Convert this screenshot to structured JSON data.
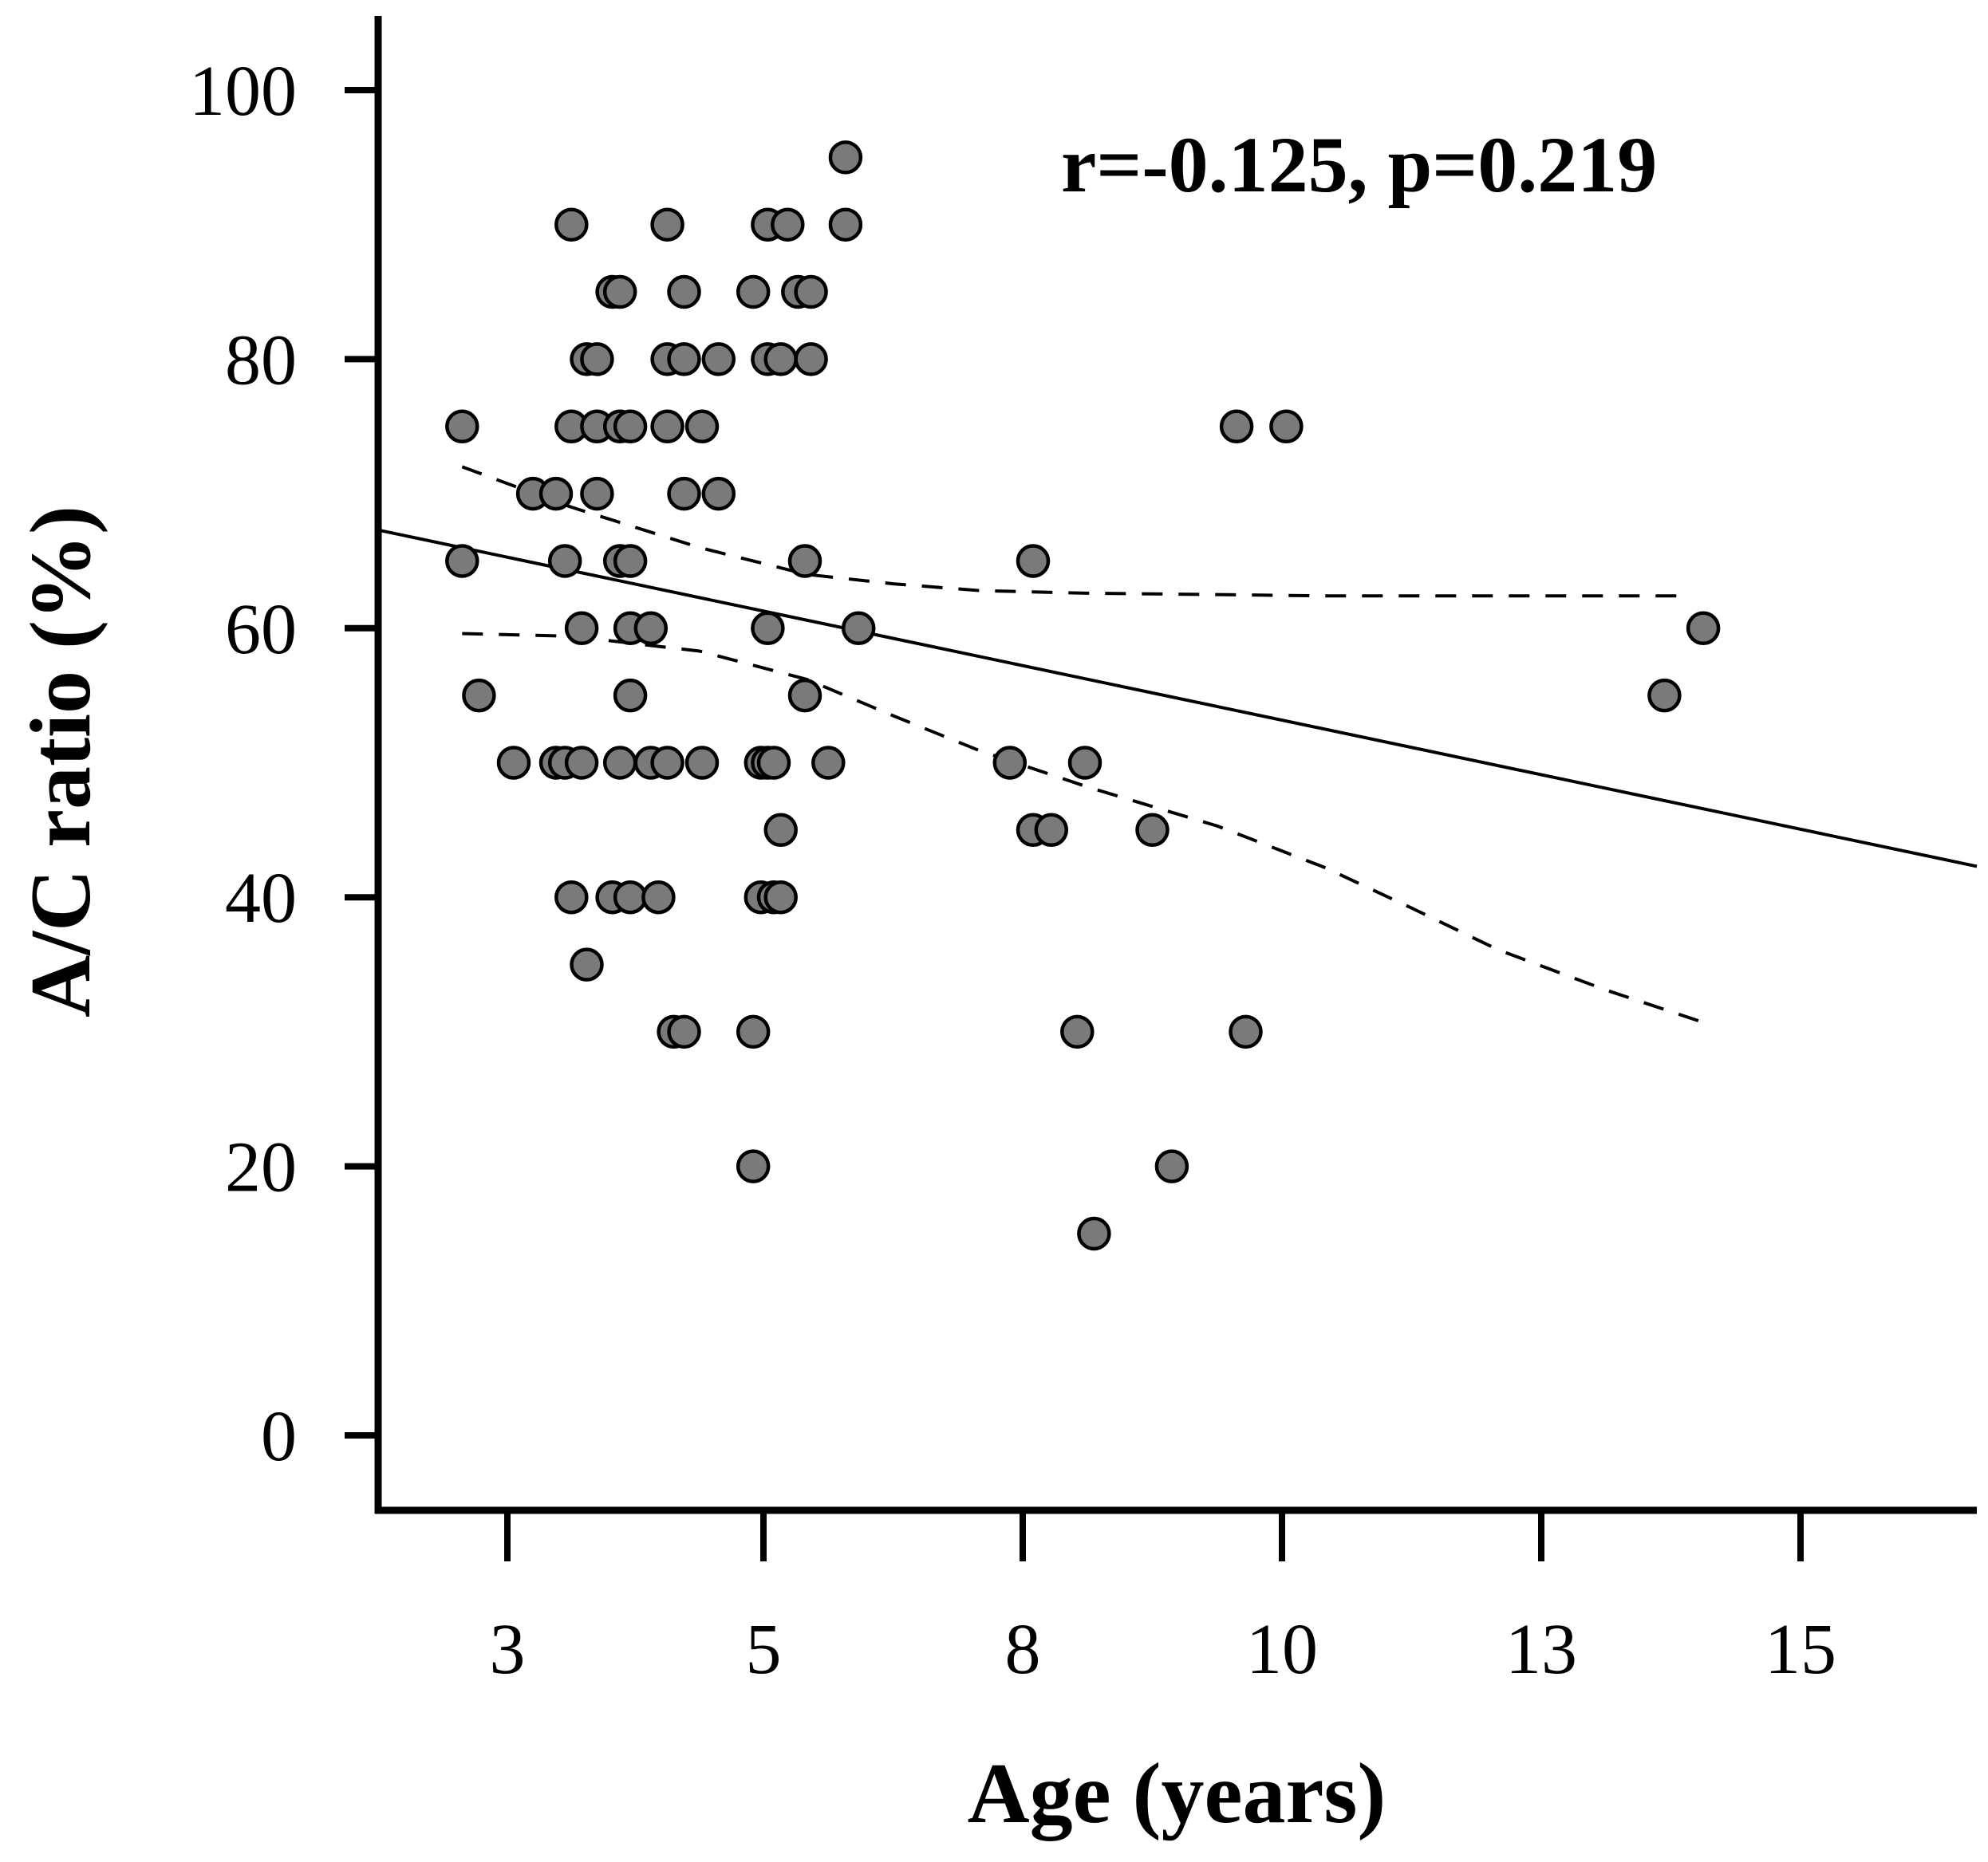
{
  "chart_data": {
    "type": "scatter",
    "title": "",
    "xlabel": "Age (years)",
    "ylabel": "A/C ratio (%)",
    "annotation": "r=-0.125, p=0.219",
    "x_tick_values": [
      3,
      5,
      8,
      10,
      13,
      15
    ],
    "x_tick_labels": [
      "3",
      "5",
      "8",
      "10",
      "13",
      "15"
    ],
    "y_tick_values": [
      0,
      20,
      40,
      60,
      80,
      100
    ],
    "y_tick_labels": [
      "0",
      "20",
      "40",
      "60",
      "80",
      "100"
    ],
    "xlim": [
      2,
      16.5
    ],
    "ylim": [
      -2,
      102
    ],
    "grid": false,
    "colors": {
      "point_fill": "#7a7a7a",
      "point_stroke": "#000000",
      "line": "#000000"
    },
    "points": [
      {
        "x": 2.65,
        "y": 75
      },
      {
        "x": 2.65,
        "y": 65
      },
      {
        "x": 2.78,
        "y": 55
      },
      {
        "x": 3.05,
        "y": 50
      },
      {
        "x": 3.2,
        "y": 70
      },
      {
        "x": 3.38,
        "y": 70
      },
      {
        "x": 3.38,
        "y": 50
      },
      {
        "x": 3.45,
        "y": 50
      },
      {
        "x": 3.45,
        "y": 65
      },
      {
        "x": 3.5,
        "y": 90
      },
      {
        "x": 3.5,
        "y": 75
      },
      {
        "x": 3.5,
        "y": 40
      },
      {
        "x": 3.58,
        "y": 50
      },
      {
        "x": 3.58,
        "y": 60
      },
      {
        "x": 3.62,
        "y": 80
      },
      {
        "x": 3.62,
        "y": 35
      },
      {
        "x": 3.7,
        "y": 80
      },
      {
        "x": 3.7,
        "y": 75
      },
      {
        "x": 3.7,
        "y": 70
      },
      {
        "x": 3.82,
        "y": 85
      },
      {
        "x": 3.82,
        "y": 40
      },
      {
        "x": 3.88,
        "y": 85
      },
      {
        "x": 3.88,
        "y": 75
      },
      {
        "x": 3.88,
        "y": 65
      },
      {
        "x": 3.88,
        "y": 50
      },
      {
        "x": 3.96,
        "y": 75
      },
      {
        "x": 3.96,
        "y": 65
      },
      {
        "x": 3.96,
        "y": 60
      },
      {
        "x": 3.96,
        "y": 55
      },
      {
        "x": 3.96,
        "y": 40
      },
      {
        "x": 4.12,
        "y": 60
      },
      {
        "x": 4.12,
        "y": 50
      },
      {
        "x": 4.18,
        "y": 40
      },
      {
        "x": 4.25,
        "y": 90
      },
      {
        "x": 4.25,
        "y": 80
      },
      {
        "x": 4.25,
        "y": 75
      },
      {
        "x": 4.25,
        "y": 50
      },
      {
        "x": 4.3,
        "y": 30
      },
      {
        "x": 4.38,
        "y": 85
      },
      {
        "x": 4.38,
        "y": 80
      },
      {
        "x": 4.38,
        "y": 70
      },
      {
        "x": 4.38,
        "y": 30
      },
      {
        "x": 4.52,
        "y": 75
      },
      {
        "x": 4.52,
        "y": 50
      },
      {
        "x": 4.65,
        "y": 80
      },
      {
        "x": 4.65,
        "y": 70
      },
      {
        "x": 4.92,
        "y": 85
      },
      {
        "x": 4.92,
        "y": 30
      },
      {
        "x": 4.92,
        "y": 20
      },
      {
        "x": 4.98,
        "y": 50
      },
      {
        "x": 4.98,
        "y": 40
      },
      {
        "x": 5.05,
        "y": 90
      },
      {
        "x": 5.05,
        "y": 80
      },
      {
        "x": 5.05,
        "y": 60
      },
      {
        "x": 5.05,
        "y": 50
      },
      {
        "x": 5.12,
        "y": 50
      },
      {
        "x": 5.12,
        "y": 40
      },
      {
        "x": 5.2,
        "y": 80
      },
      {
        "x": 5.2,
        "y": 45
      },
      {
        "x": 5.2,
        "y": 40
      },
      {
        "x": 5.28,
        "y": 90
      },
      {
        "x": 5.4,
        "y": 85
      },
      {
        "x": 5.48,
        "y": 65
      },
      {
        "x": 5.48,
        "y": 55
      },
      {
        "x": 5.55,
        "y": 85
      },
      {
        "x": 5.55,
        "y": 80
      },
      {
        "x": 5.75,
        "y": 50
      },
      {
        "x": 5.95,
        "y": 95
      },
      {
        "x": 5.95,
        "y": 90
      },
      {
        "x": 6.1,
        "y": 60
      },
      {
        "x": 7.85,
        "y": 50
      },
      {
        "x": 8.08,
        "y": 65
      },
      {
        "x": 8.08,
        "y": 45
      },
      {
        "x": 8.22,
        "y": 45
      },
      {
        "x": 8.42,
        "y": 30
      },
      {
        "x": 8.48,
        "y": 50
      },
      {
        "x": 8.55,
        "y": 15
      },
      {
        "x": 9.0,
        "y": 45
      },
      {
        "x": 9.15,
        "y": 20
      },
      {
        "x": 9.65,
        "y": 75
      },
      {
        "x": 9.72,
        "y": 30
      },
      {
        "x": 10.05,
        "y": 75
      },
      {
        "x": 13.95,
        "y": 55
      },
      {
        "x": 14.25,
        "y": 60
      }
    ],
    "regression_line": {
      "x": [
        2,
        16.5
      ],
      "y": [
        67.3,
        42.3
      ]
    },
    "ci_upper": {
      "x": [
        2.65,
        3.5,
        4.5,
        5.5,
        6.5,
        7.5,
        8.5,
        9.5,
        10.5,
        11.5,
        12.5,
        13.5,
        14.1
      ],
      "y": [
        72,
        69,
        66,
        64,
        63.3,
        62.8,
        62.6,
        62.5,
        62.4,
        62.4,
        62.4,
        62.4,
        62.4
      ]
    },
    "ci_lower": {
      "x": [
        2.65,
        3.5,
        4.5,
        5.5,
        6.5,
        7.5,
        8.5,
        9.5,
        10.5,
        11.5,
        12.5,
        13.5,
        14.25
      ],
      "y": [
        59.6,
        59.4,
        58.3,
        56.2,
        53.5,
        50.9,
        48.2,
        45.3,
        42.2,
        39.2,
        36.1,
        33.1,
        30.7
      ]
    }
  }
}
